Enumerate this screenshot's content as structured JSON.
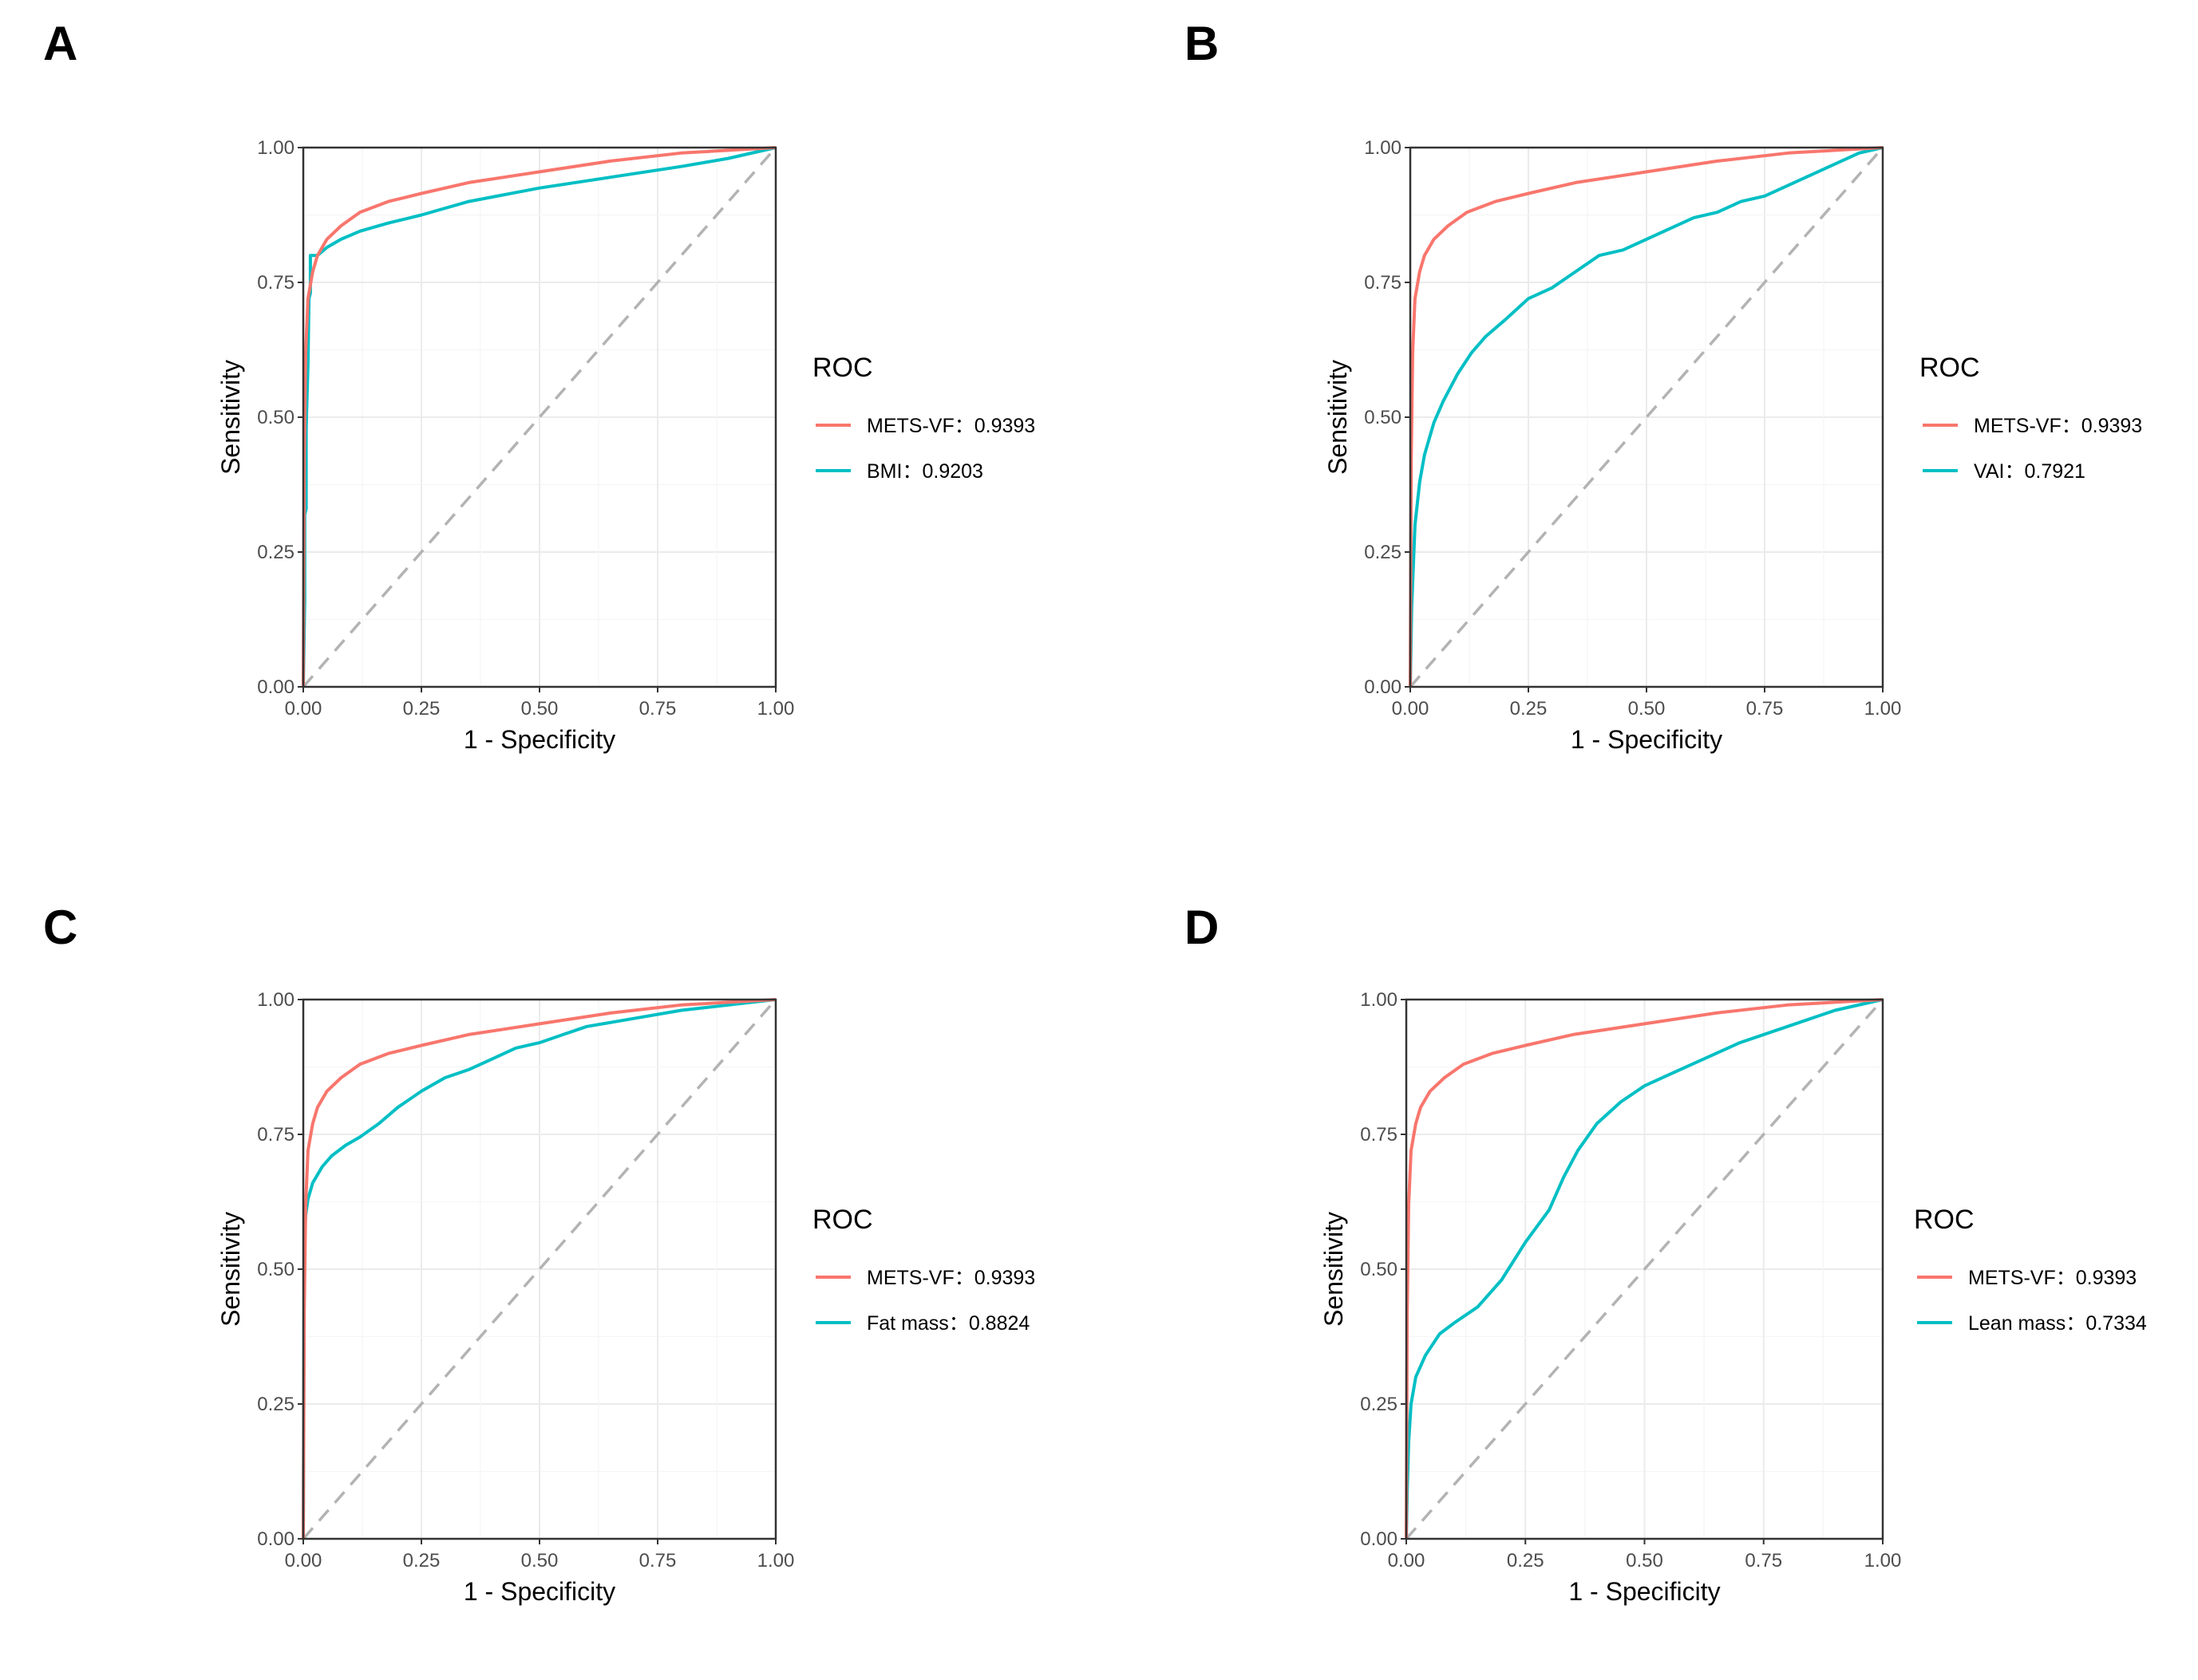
{
  "chart_data": [
    {
      "panel": "A",
      "type": "line",
      "xlabel": "1 - Specificity",
      "ylabel": "Sensitivity",
      "xlim": [
        0,
        1
      ],
      "ylim": [
        0,
        1
      ],
      "ticks": [
        "0.00",
        "0.25",
        "0.50",
        "0.75",
        "1.00"
      ],
      "legend_title": "ROC",
      "series": [
        {
          "name": "METS-VF",
          "auc": "0.9393",
          "color": "#F8766D",
          "x": [
            0,
            0.002,
            0.005,
            0.01,
            0.02,
            0.03,
            0.05,
            0.08,
            0.12,
            0.18,
            0.25,
            0.35,
            0.5,
            0.65,
            0.8,
            0.9,
            1.0
          ],
          "y": [
            0,
            0.42,
            0.62,
            0.72,
            0.77,
            0.8,
            0.83,
            0.855,
            0.88,
            0.9,
            0.915,
            0.935,
            0.955,
            0.975,
            0.99,
            0.995,
            1.0
          ]
        },
        {
          "name": "BMI",
          "auc": "0.9203",
          "color": "#00BFC4",
          "x": [
            0,
            0.003,
            0.003,
            0.006,
            0.006,
            0.01,
            0.012,
            0.015,
            0.015,
            0.03,
            0.05,
            0.08,
            0.12,
            0.18,
            0.25,
            0.35,
            0.5,
            0.65,
            0.8,
            0.9,
            1.0
          ],
          "y": [
            0,
            0.16,
            0.32,
            0.33,
            0.48,
            0.6,
            0.72,
            0.73,
            0.8,
            0.8,
            0.815,
            0.83,
            0.845,
            0.86,
            0.875,
            0.9,
            0.925,
            0.945,
            0.965,
            0.98,
            1.0
          ]
        }
      ]
    },
    {
      "panel": "B",
      "type": "line",
      "xlabel": "1 - Specificity",
      "ylabel": "Sensitivity",
      "xlim": [
        0,
        1
      ],
      "ylim": [
        0,
        1
      ],
      "ticks": [
        "0.00",
        "0.25",
        "0.50",
        "0.75",
        "1.00"
      ],
      "legend_title": "ROC",
      "series": [
        {
          "name": "METS-VF",
          "auc": "0.9393",
          "color": "#F8766D",
          "x": [
            0,
            0.002,
            0.005,
            0.01,
            0.02,
            0.03,
            0.05,
            0.08,
            0.12,
            0.18,
            0.25,
            0.35,
            0.5,
            0.65,
            0.8,
            0.9,
            1.0
          ],
          "y": [
            0,
            0.42,
            0.62,
            0.72,
            0.77,
            0.8,
            0.83,
            0.855,
            0.88,
            0.9,
            0.915,
            0.935,
            0.955,
            0.975,
            0.99,
            0.995,
            1.0
          ]
        },
        {
          "name": "VAI",
          "auc": "0.7921",
          "color": "#00BFC4",
          "x": [
            0,
            0.003,
            0.01,
            0.02,
            0.03,
            0.05,
            0.07,
            0.1,
            0.13,
            0.16,
            0.2,
            0.25,
            0.3,
            0.35,
            0.4,
            0.45,
            0.5,
            0.55,
            0.6,
            0.65,
            0.7,
            0.75,
            0.8,
            0.85,
            0.9,
            0.95,
            1.0
          ],
          "y": [
            0,
            0.15,
            0.3,
            0.38,
            0.43,
            0.49,
            0.53,
            0.58,
            0.62,
            0.65,
            0.68,
            0.72,
            0.74,
            0.77,
            0.8,
            0.81,
            0.83,
            0.85,
            0.87,
            0.88,
            0.9,
            0.91,
            0.93,
            0.95,
            0.97,
            0.99,
            1.0
          ]
        }
      ]
    },
    {
      "panel": "C",
      "type": "line",
      "xlabel": "1 - Specificity",
      "ylabel": "Sensitivity",
      "xlim": [
        0,
        1
      ],
      "ylim": [
        0,
        1
      ],
      "ticks": [
        "0.00",
        "0.25",
        "0.50",
        "0.75",
        "1.00"
      ],
      "legend_title": "ROC",
      "series": [
        {
          "name": "METS-VF",
          "auc": "0.9393",
          "color": "#F8766D",
          "x": [
            0,
            0.002,
            0.005,
            0.01,
            0.02,
            0.03,
            0.05,
            0.08,
            0.12,
            0.18,
            0.25,
            0.35,
            0.5,
            0.65,
            0.8,
            0.9,
            1.0
          ],
          "y": [
            0,
            0.42,
            0.62,
            0.72,
            0.77,
            0.8,
            0.83,
            0.855,
            0.88,
            0.9,
            0.915,
            0.935,
            0.955,
            0.975,
            0.99,
            0.995,
            1.0
          ]
        },
        {
          "name": "Fat mass",
          "auc": "0.8824",
          "color": "#00BFC4",
          "x": [
            0,
            0.002,
            0.005,
            0.01,
            0.02,
            0.04,
            0.06,
            0.09,
            0.12,
            0.16,
            0.2,
            0.25,
            0.3,
            0.35,
            0.4,
            0.45,
            0.5,
            0.55,
            0.6,
            0.7,
            0.8,
            0.9,
            1.0
          ],
          "y": [
            0,
            0.55,
            0.6,
            0.63,
            0.66,
            0.69,
            0.71,
            0.73,
            0.745,
            0.77,
            0.8,
            0.83,
            0.855,
            0.87,
            0.89,
            0.91,
            0.92,
            0.935,
            0.95,
            0.965,
            0.98,
            0.99,
            1.0
          ]
        }
      ]
    },
    {
      "panel": "D",
      "type": "line",
      "xlabel": "1 - Specificity",
      "ylabel": "Sensitivity",
      "xlim": [
        0,
        1
      ],
      "ylim": [
        0,
        1
      ],
      "ticks": [
        "0.00",
        "0.25",
        "0.50",
        "0.75",
        "1.00"
      ],
      "legend_title": "ROC",
      "series": [
        {
          "name": "METS-VF",
          "auc": "0.9393",
          "color": "#F8766D",
          "x": [
            0,
            0.002,
            0.005,
            0.01,
            0.02,
            0.03,
            0.05,
            0.08,
            0.12,
            0.18,
            0.25,
            0.35,
            0.5,
            0.65,
            0.8,
            0.9,
            1.0
          ],
          "y": [
            0,
            0.42,
            0.62,
            0.72,
            0.77,
            0.8,
            0.83,
            0.855,
            0.88,
            0.9,
            0.915,
            0.935,
            0.955,
            0.975,
            0.99,
            0.995,
            1.0
          ]
        },
        {
          "name": "Lean mass",
          "auc": "0.7334",
          "color": "#00BFC4",
          "x": [
            0,
            0.002,
            0.005,
            0.01,
            0.02,
            0.04,
            0.07,
            0.1,
            0.15,
            0.2,
            0.25,
            0.3,
            0.33,
            0.36,
            0.4,
            0.45,
            0.5,
            0.55,
            0.6,
            0.65,
            0.7,
            0.8,
            0.9,
            1.0
          ],
          "y": [
            0,
            0.09,
            0.18,
            0.25,
            0.3,
            0.34,
            0.38,
            0.4,
            0.43,
            0.48,
            0.55,
            0.61,
            0.67,
            0.72,
            0.77,
            0.81,
            0.84,
            0.86,
            0.88,
            0.9,
            0.92,
            0.95,
            0.98,
            1.0
          ]
        }
      ]
    }
  ]
}
